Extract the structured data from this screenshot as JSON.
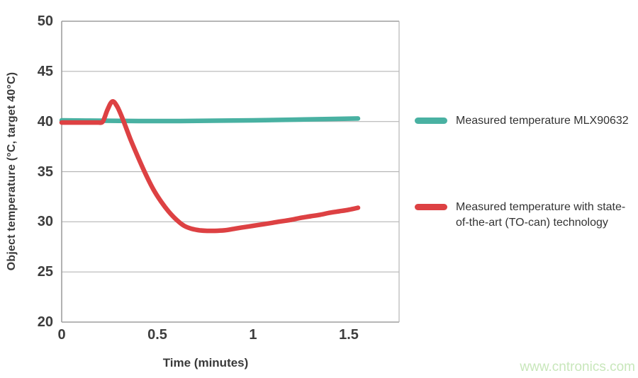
{
  "watermark": {
    "text": "www.cntronics.com",
    "color": "#c8e7bb"
  },
  "chart_data": {
    "type": "line",
    "title": "",
    "xlabel": "Time (minutes)",
    "ylabel": "Object temperature (°C, target 40°C)",
    "xlim": [
      0,
      1.763
    ],
    "ylim": [
      20,
      50
    ],
    "xticks": [
      0,
      0.5,
      1,
      1.5
    ],
    "yticks": [
      20,
      25,
      30,
      35,
      40,
      45,
      50
    ],
    "grid": "horizontal",
    "legend_position": "right-outside",
    "frame_color": "#9e9e9e",
    "grid_color": "#b6b6b6",
    "series": [
      {
        "name": "Measured temperature MLX90632",
        "color": "#49b1a2",
        "line_width": 6.5,
        "x": [
          0,
          0.2,
          0.4,
          0.6,
          0.8,
          1.0,
          1.2,
          1.4,
          1.548
        ],
        "y": [
          40.12,
          40.08,
          40.05,
          40.05,
          40.08,
          40.12,
          40.18,
          40.25,
          40.3
        ]
      },
      {
        "name": "Measured temperature with state-of-the-art (TO-can) technology",
        "color": "#dd4143",
        "line_width": 6.5,
        "x": [
          0,
          0.05,
          0.1,
          0.15,
          0.19,
          0.215,
          0.24,
          0.265,
          0.29,
          0.32,
          0.36,
          0.4,
          0.44,
          0.48,
          0.52,
          0.56,
          0.6,
          0.64,
          0.68,
          0.72,
          0.76,
          0.8,
          0.85,
          0.9,
          0.95,
          1.0,
          1.05,
          1.1,
          1.15,
          1.2,
          1.25,
          1.3,
          1.35,
          1.4,
          1.45,
          1.5,
          1.548
        ],
        "y": [
          39.9,
          39.9,
          39.9,
          39.9,
          39.9,
          40.0,
          41.2,
          42.0,
          41.5,
          40.2,
          38.2,
          36.4,
          34.7,
          33.2,
          32.0,
          31.0,
          30.2,
          29.6,
          29.3,
          29.15,
          29.1,
          29.1,
          29.15,
          29.3,
          29.45,
          29.6,
          29.75,
          29.9,
          30.05,
          30.2,
          30.4,
          30.55,
          30.7,
          30.9,
          31.05,
          31.2,
          31.4
        ]
      }
    ]
  }
}
